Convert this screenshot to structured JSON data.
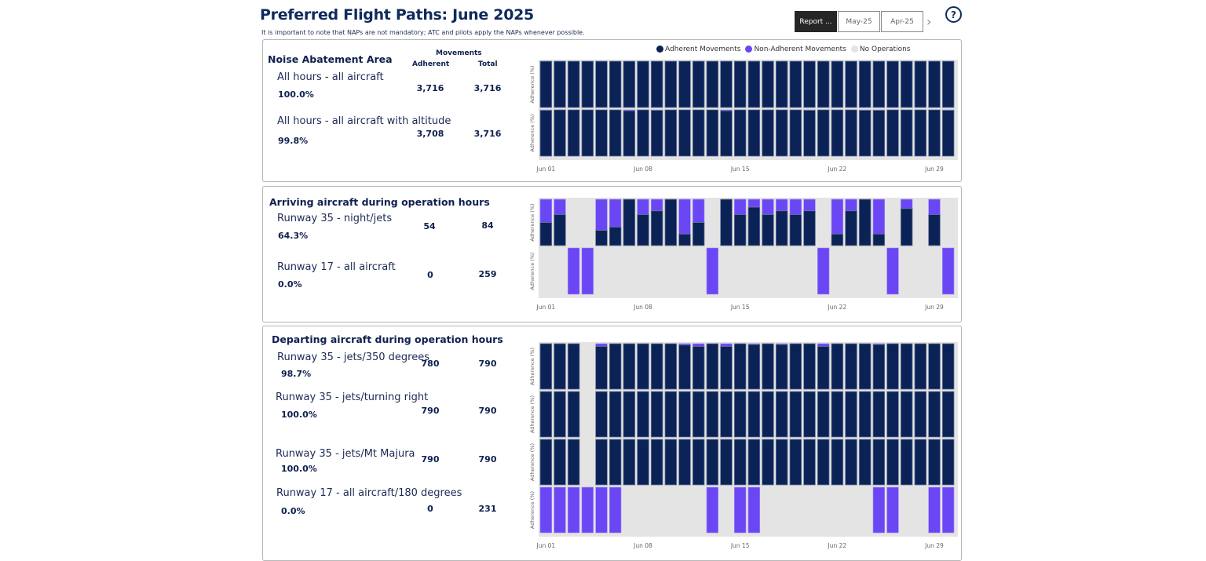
{
  "header": {
    "title": "Preferred Flight Paths: June 2025",
    "subtitle": "It is important to note that NAPs are not mandatory; ATC and pilots apply the NAPs whenever possible.",
    "tabs": [
      {
        "label": "Report ...",
        "active": true
      },
      {
        "label": "May-25",
        "active": false
      },
      {
        "label": "Apr-25",
        "active": false
      }
    ],
    "next_icon": "›",
    "help_icon": "?"
  },
  "legend": {
    "items": [
      {
        "label": "Adherent Movements",
        "color": "#0a2256"
      },
      {
        "label": "Non-Adherent Movements",
        "color": "#6b46f5"
      },
      {
        "label": "No Operations",
        "color": "#e4e4e4"
      }
    ]
  },
  "columns": {
    "group": "Movements",
    "adherent": "Adherent",
    "total": "Total"
  },
  "colors": {
    "adherent": "#0a2256",
    "non_adherent": "#6b46f5",
    "no_ops": "#e4e4e4"
  },
  "sections": [
    {
      "title": "Noise Abatement Area",
      "rows": [
        {
          "label": "All hours - all aircraft",
          "pct": "100.0%",
          "adherent": "3,716",
          "total": "3,716"
        },
        {
          "label": "All hours - all aircraft with altitude",
          "pct": "99.8%",
          "adherent": "3,708",
          "total": "3,716"
        }
      ]
    },
    {
      "title": "Arriving aircraft during operation hours",
      "rows": [
        {
          "label": "Runway 35 - night/jets",
          "pct": "64.3%",
          "adherent": "54",
          "total": "84"
        },
        {
          "label": "Runway 17 - all aircraft",
          "pct": "0.0%",
          "adherent": "0",
          "total": "259"
        }
      ]
    },
    {
      "title": "Departing aircraft during operation hours",
      "rows": [
        {
          "label": "Runway 35 - jets/350 degrees",
          "pct": "98.7%",
          "adherent": "780",
          "total": "790"
        },
        {
          "label": "Runway 35 - jets/turning right",
          "pct": "100.0%",
          "adherent": "790",
          "total": "790"
        },
        {
          "label": "Runway 35 - jets/Mt Majura",
          "pct": "100.0%",
          "adherent": "790",
          "total": "790"
        },
        {
          "label": "Runway 17 - all aircraft/180 degrees",
          "pct": "0.0%",
          "adherent": "0",
          "total": "231"
        }
      ]
    }
  ],
  "chart_data": [
    {
      "type": "bar",
      "title": "Noise Abatement Area",
      "ylabel": "Adherence (%)",
      "x_ticks": [
        "Jun 01",
        "Jun 08",
        "Jun 15",
        "Jun 22",
        "Jun 29"
      ],
      "ylim": [
        0,
        100
      ],
      "days": 30,
      "series": [
        {
          "name": "All hours - all aircraft",
          "adherence_pct": [
            100,
            100,
            100,
            100,
            100,
            100,
            100,
            100,
            100,
            100,
            100,
            100,
            100,
            100,
            100,
            100,
            100,
            100,
            100,
            100,
            100,
            100,
            100,
            100,
            100,
            100,
            100,
            100,
            100,
            100
          ]
        },
        {
          "name": "All hours - all aircraft with altitude",
          "adherence_pct": [
            99,
            100,
            100,
            100,
            100,
            100,
            98,
            100,
            99,
            100,
            100,
            100,
            100,
            98,
            100,
            100,
            100,
            100,
            100,
            99,
            100,
            100,
            100,
            99,
            99,
            100,
            100,
            100,
            100,
            99
          ]
        }
      ]
    },
    {
      "type": "bar",
      "title": "Arriving aircraft during operation hours",
      "ylabel": "Adherence (%)",
      "x_ticks": [
        "Jun 01",
        "Jun 08",
        "Jun 15",
        "Jun 22",
        "Jun 29"
      ],
      "ylim": [
        0,
        100
      ],
      "days": 30,
      "series": [
        {
          "name": "Runway 35 - night/jets",
          "adherence_pct": [
            50,
            67,
            null,
            null,
            33,
            40,
            100,
            67,
            75,
            100,
            25,
            50,
            null,
            100,
            67,
            83,
            67,
            75,
            67,
            75,
            null,
            25,
            75,
            100,
            25,
            null,
            80,
            null,
            67,
            null
          ]
        },
        {
          "name": "Runway 17 - all aircraft",
          "adherence_pct": [
            null,
            null,
            0,
            0,
            null,
            null,
            null,
            null,
            null,
            null,
            null,
            null,
            0,
            null,
            null,
            null,
            null,
            null,
            null,
            null,
            0,
            null,
            null,
            null,
            null,
            0,
            null,
            null,
            null,
            0
          ]
        }
      ]
    },
    {
      "type": "bar",
      "title": "Departing aircraft during operation hours",
      "ylabel": "Adherence (%)",
      "x_ticks": [
        "Jun 01",
        "Jun 08",
        "Jun 15",
        "Jun 22",
        "Jun 29"
      ],
      "ylim": [
        0,
        100
      ],
      "days": 30,
      "series": [
        {
          "name": "Runway 35 - jets/350 degrees",
          "adherence_pct": [
            100,
            100,
            100,
            null,
            94,
            100,
            100,
            100,
            100,
            100,
            97,
            94,
            100,
            94,
            100,
            98,
            100,
            98,
            100,
            100,
            94,
            100,
            100,
            100,
            98,
            100,
            100,
            100,
            100,
            100
          ]
        },
        {
          "name": "Runway 35 - jets/turning right",
          "adherence_pct": [
            100,
            100,
            100,
            null,
            100,
            100,
            100,
            100,
            100,
            100,
            100,
            100,
            100,
            100,
            100,
            100,
            100,
            100,
            100,
            100,
            100,
            100,
            100,
            100,
            100,
            100,
            100,
            100,
            100,
            100
          ]
        },
        {
          "name": "Runway 35 - jets/Mt Majura",
          "adherence_pct": [
            100,
            100,
            100,
            null,
            100,
            100,
            100,
            100,
            100,
            100,
            100,
            100,
            100,
            100,
            100,
            100,
            100,
            100,
            100,
            100,
            100,
            100,
            100,
            100,
            100,
            100,
            100,
            100,
            100,
            100
          ]
        },
        {
          "name": "Runway 17 - all aircraft/180 degrees",
          "adherence_pct": [
            0,
            0,
            0,
            0,
            0,
            0,
            null,
            null,
            null,
            null,
            null,
            null,
            0,
            null,
            0,
            0,
            null,
            null,
            null,
            null,
            null,
            null,
            null,
            null,
            0,
            0,
            null,
            null,
            0,
            0
          ]
        }
      ]
    }
  ]
}
